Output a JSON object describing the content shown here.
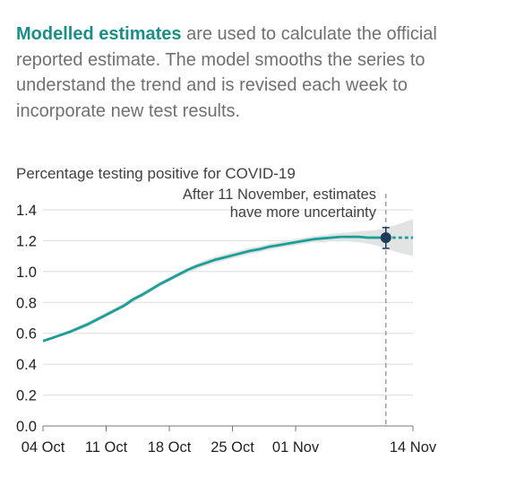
{
  "intro": {
    "highlight": "Modelled estimates",
    "rest": " are used to calculate the official reported estimate. The model smooths the series to understand the trend and is revised each week to incorporate new test results."
  },
  "colors": {
    "line": "#1a9e98",
    "band": "#e2e3e3",
    "highlight": "#1a8f89",
    "point": "#1f3a5a"
  },
  "chart_data": {
    "type": "line",
    "subtitle": "Percentage testing positive for COVID-19",
    "x": [
      "04 Oct",
      "05 Oct",
      "06 Oct",
      "07 Oct",
      "08 Oct",
      "09 Oct",
      "10 Oct",
      "11 Oct",
      "12 Oct",
      "13 Oct",
      "14 Oct",
      "15 Oct",
      "16 Oct",
      "17 Oct",
      "18 Oct",
      "19 Oct",
      "20 Oct",
      "21 Oct",
      "22 Oct",
      "23 Oct",
      "24 Oct",
      "25 Oct",
      "26 Oct",
      "27 Oct",
      "28 Oct",
      "29 Oct",
      "30 Oct",
      "31 Oct",
      "01 Nov",
      "02 Nov",
      "03 Nov",
      "04 Nov",
      "05 Nov",
      "06 Nov",
      "07 Nov",
      "08 Nov",
      "09 Nov",
      "10 Nov",
      "11 Nov",
      "12 Nov",
      "13 Nov",
      "14 Nov"
    ],
    "series": [
      {
        "values": [
          0.55,
          0.57,
          0.59,
          0.61,
          0.635,
          0.66,
          0.69,
          0.72,
          0.75,
          0.78,
          0.82,
          0.85,
          0.885,
          0.92,
          0.95,
          0.98,
          1.01,
          1.035,
          1.055,
          1.075,
          1.09,
          1.105,
          1.12,
          1.135,
          1.145,
          1.16,
          1.17,
          1.18,
          1.19,
          1.2,
          1.21,
          1.215,
          1.22,
          1.225,
          1.225,
          1.225,
          1.22,
          1.22,
          1.22,
          1.22,
          1.22,
          1.22
        ],
        "lower": [
          0.54,
          0.56,
          0.58,
          0.6,
          0.62,
          0.645,
          0.675,
          0.705,
          0.735,
          0.765,
          0.8,
          0.835,
          0.87,
          0.905,
          0.935,
          0.965,
          0.99,
          1.015,
          1.035,
          1.055,
          1.07,
          1.085,
          1.1,
          1.115,
          1.125,
          1.14,
          1.15,
          1.16,
          1.17,
          1.18,
          1.19,
          1.19,
          1.195,
          1.2,
          1.195,
          1.19,
          1.18,
          1.17,
          1.15,
          1.13,
          1.115,
          1.1
        ],
        "upper": [
          0.56,
          0.58,
          0.6,
          0.625,
          0.65,
          0.675,
          0.705,
          0.735,
          0.765,
          0.8,
          0.835,
          0.87,
          0.9,
          0.935,
          0.965,
          0.995,
          1.025,
          1.05,
          1.075,
          1.095,
          1.11,
          1.125,
          1.14,
          1.155,
          1.165,
          1.18,
          1.19,
          1.2,
          1.21,
          1.22,
          1.23,
          1.235,
          1.245,
          1.25,
          1.255,
          1.26,
          1.265,
          1.27,
          1.285,
          1.3,
          1.32,
          1.34
        ]
      }
    ],
    "solid_until": "11 Nov",
    "highlight_point": {
      "x": "11 Nov",
      "y": 1.22
    },
    "annotation": [
      "After 11 November, estimates",
      "have more uncertainty"
    ],
    "xticks": [
      "04 Oct",
      "11 Oct",
      "18 Oct",
      "25 Oct",
      "01 Nov",
      "14 Nov"
    ],
    "yticks": [
      "0.0",
      "0.2",
      "0.4",
      "0.6",
      "0.8",
      "1.0",
      "1.2",
      "1.4"
    ],
    "ylim": [
      0,
      1.4
    ]
  }
}
